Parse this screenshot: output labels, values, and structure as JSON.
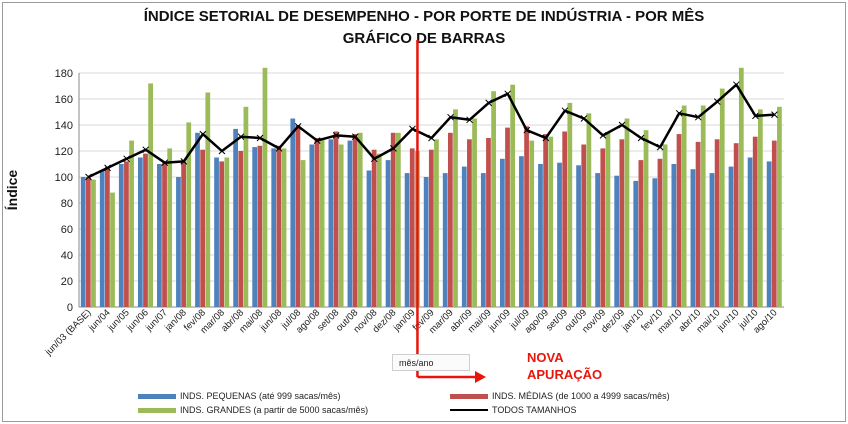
{
  "chart_data": {
    "type": "bar",
    "title": "ÍNDICE SETORIAL DE DESEMPENHO - POR PORTE DE INDÚSTRIA - POR MÊS",
    "subtitle": "GRÁFICO DE BARRAS",
    "ylabel": "Índice",
    "xlabel": "mês/ano",
    "ylim": [
      0,
      180
    ],
    "yticks": [
      0,
      20,
      40,
      60,
      80,
      100,
      120,
      140,
      160,
      180
    ],
    "grid": true,
    "legend_position": "bottom",
    "categories": [
      "jun/03 (BASE)",
      "jun/04",
      "jun/05",
      "jun/06",
      "jun/07",
      "jan/08",
      "fev/08",
      "mar/08",
      "abr/08",
      "mai/08",
      "jun/08",
      "jul/08",
      "ago/08",
      "set/08",
      "out/08",
      "nov/08",
      "dez/08",
      "jan/09",
      "fev/09",
      "mar/09",
      "abr/09",
      "mai/09",
      "jun/09",
      "jul/09",
      "ago/09",
      "set/09",
      "out/09",
      "nov/09",
      "dez/09",
      "jan/10",
      "fev/10",
      "mar/10",
      "abr/10",
      "mai/10",
      "jun/10",
      "jul/10",
      "ago/10"
    ],
    "series": [
      {
        "name": "INDS. PEQUENAS (até 999 sacas/mês)",
        "kind": "bar",
        "color": "#4f81bd",
        "values": [
          100,
          105,
          110,
          115,
          110,
          100,
          134,
          115,
          137,
          123,
          122,
          145,
          125,
          129,
          128,
          105,
          113,
          103,
          100,
          103,
          108,
          103,
          114,
          116,
          110,
          111,
          109,
          103,
          101,
          97,
          99,
          110,
          106,
          103,
          108,
          115,
          112
        ]
      },
      {
        "name": "INDS. MÉDIAS (de 1000 a 4999 sacas/mês)",
        "kind": "bar",
        "color": "#c0504d",
        "values": [
          100,
          108,
          112,
          118,
          112,
          112,
          121,
          112,
          120,
          124,
          124,
          140,
          130,
          135,
          133,
          121,
          134,
          122,
          121,
          134,
          129,
          130,
          138,
          139,
          133,
          135,
          125,
          122,
          129,
          113,
          114,
          133,
          127,
          129,
          126,
          131,
          128
        ]
      },
      {
        "name": "INDS. GRANDES (a partir de 5000 sacas/mês)",
        "kind": "bar",
        "color": "#9bbb59",
        "values": [
          98,
          88,
          128,
          172,
          122,
          142,
          165,
          115,
          154,
          184,
          122,
          113,
          130,
          125,
          134,
          118,
          134,
          120,
          129,
          152,
          145,
          166,
          171,
          128,
          131,
          157,
          149,
          134,
          145,
          136,
          125,
          155,
          155,
          168,
          184,
          152,
          154
        ]
      },
      {
        "name": "TODOS TAMANHOS",
        "kind": "line",
        "color": "#000000",
        "values": [
          100,
          107,
          114,
          121,
          111,
          112,
          133,
          120,
          131,
          130,
          122,
          139,
          128,
          132,
          131,
          114,
          122,
          137,
          130,
          146,
          144,
          157,
          164,
          136,
          130,
          151,
          145,
          132,
          140,
          130,
          123,
          149,
          146,
          158,
          171,
          147,
          148
        ]
      }
    ],
    "annotations": [
      {
        "text": "NOVA APURAÇÃO",
        "color": "#e8150b",
        "at_category": "jan/09"
      }
    ]
  },
  "legend": {
    "small": "INDS. PEQUENAS (até 999 sacas/mês)",
    "medium": "INDS. MÉDIAS (de 1000 a 4999 sacas/mês)",
    "large": "INDS. GRANDES (a partir de 5000 sacas/mês)",
    "all": "TODOS TAMANHOS"
  },
  "annotation": {
    "line1": "NOVA",
    "line2": "APURAÇÃO"
  },
  "colors": {
    "small": "#4f81bd",
    "medium": "#c0504d",
    "large": "#9bbb59",
    "all": "#000000",
    "annotation": "#e8150b"
  }
}
